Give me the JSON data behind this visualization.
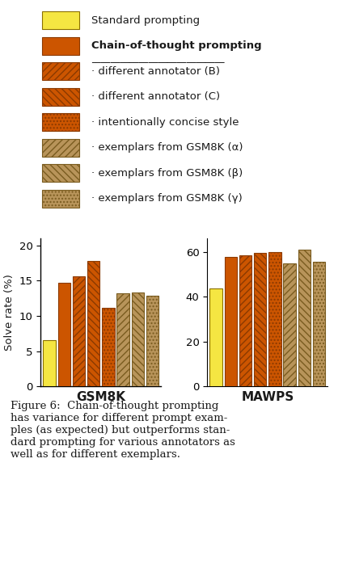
{
  "gsm8k_values": [
    6.5,
    14.7,
    15.6,
    17.8,
    11.1,
    13.2,
    13.3,
    12.9
  ],
  "mawps_values": [
    43.7,
    57.8,
    58.5,
    59.5,
    60.0,
    55.0,
    61.0,
    55.5
  ],
  "series_labels": [
    "Standard prompting",
    "Chain-of-thought prompting",
    "· different annotator (B)",
    "· different annotator (C)",
    "· intentionally concise style",
    "· exemplars from GSM8K (α)",
    "· exemplars from GSM8K (β)",
    "· exemplars from GSM8K (γ)"
  ],
  "bar_facecolors": [
    "#F5E642",
    "#CC5500",
    "#CC5500",
    "#CC5500",
    "#CC5500",
    "#B8945A",
    "#B8945A",
    "#B8945A"
  ],
  "bar_edgecolors": [
    "#8B7000",
    "#8B3A00",
    "#8B3A00",
    "#8B3A00",
    "#8B3A00",
    "#7A5C20",
    "#7A5C20",
    "#7A5C20"
  ],
  "hatches": [
    "",
    "",
    "////",
    "\\\\\\\\",
    "....",
    "////",
    "\\\\\\\\",
    "...."
  ],
  "gsm8k_ylim": [
    0,
    21
  ],
  "gsm8k_yticks": [
    0,
    5,
    10,
    15,
    20
  ],
  "mawps_ylim": [
    0,
    66
  ],
  "mawps_yticks": [
    0,
    20,
    40,
    60
  ],
  "ylabel": "Solve rate (%)",
  "xlabel_left": "GSM8K",
  "xlabel_right": "MAWPS",
  "caption": "Figure 6:  Chain-of-thought prompting\nhas variance for different prompt exam-\nples (as expected) but outperforms stan-\ndard prompting for various annotators as\nwell as for different exemplars.",
  "bg_color": "#FFFFFF",
  "text_color": "#1A1A1A",
  "font_size": 9.5
}
